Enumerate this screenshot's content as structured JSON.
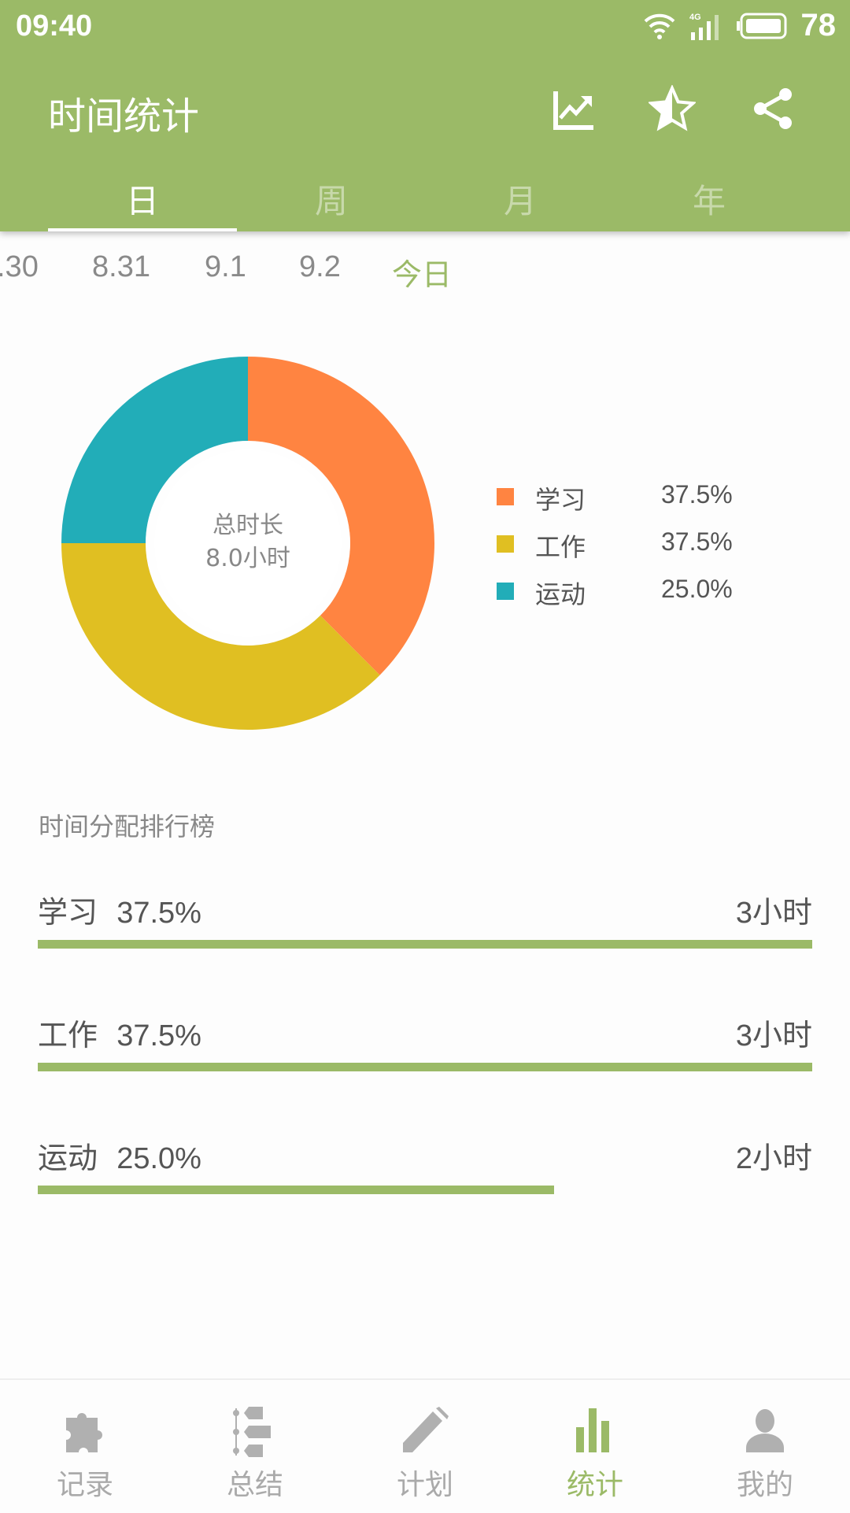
{
  "status_bar": {
    "time": "09:40",
    "network": "4G",
    "battery": "78"
  },
  "app_bar": {
    "title": "时间统计",
    "actions": [
      "trend-chart-icon",
      "star-half-icon",
      "share-icon"
    ]
  },
  "tabs": [
    {
      "label": "日",
      "active": true
    },
    {
      "label": "周",
      "active": false
    },
    {
      "label": "月",
      "active": false
    },
    {
      "label": "年",
      "active": false
    }
  ],
  "dates": [
    ".30",
    "8.31",
    "9.1",
    "9.2",
    "今日"
  ],
  "selected_date": "今日",
  "chart_data": {
    "type": "pie",
    "donut": true,
    "center_label": "总时长",
    "center_value": "8.0小时",
    "categories": [
      "学习",
      "工作",
      "运动"
    ],
    "values": [
      37.5,
      37.5,
      25.0
    ],
    "value_labels": [
      "37.5%",
      "37.5%",
      "25.0%"
    ],
    "colors": [
      "#ff8441",
      "#e0bf22",
      "#22adb8"
    ],
    "legend_position": "right"
  },
  "ranking": {
    "title": "时间分配排行榜",
    "items": [
      {
        "name": "学习",
        "percent": "37.5%",
        "duration": "3小时",
        "fill": 1.0
      },
      {
        "name": "工作",
        "percent": "37.5%",
        "duration": "3小时",
        "fill": 1.0
      },
      {
        "name": "运动",
        "percent": "25.0%",
        "duration": "2小时",
        "fill": 0.667
      }
    ]
  },
  "bottom_nav": [
    {
      "label": "记录",
      "icon": "puzzle-icon",
      "active": false
    },
    {
      "label": "总结",
      "icon": "timeline-icon",
      "active": false
    },
    {
      "label": "计划",
      "icon": "pencil-icon",
      "active": false
    },
    {
      "label": "统计",
      "icon": "bar-chart-icon",
      "active": true
    },
    {
      "label": "我的",
      "icon": "person-icon",
      "active": false
    }
  ],
  "colors": {
    "primary": "#9bba67",
    "text": "#555555",
    "muted": "#8a8a8a"
  }
}
